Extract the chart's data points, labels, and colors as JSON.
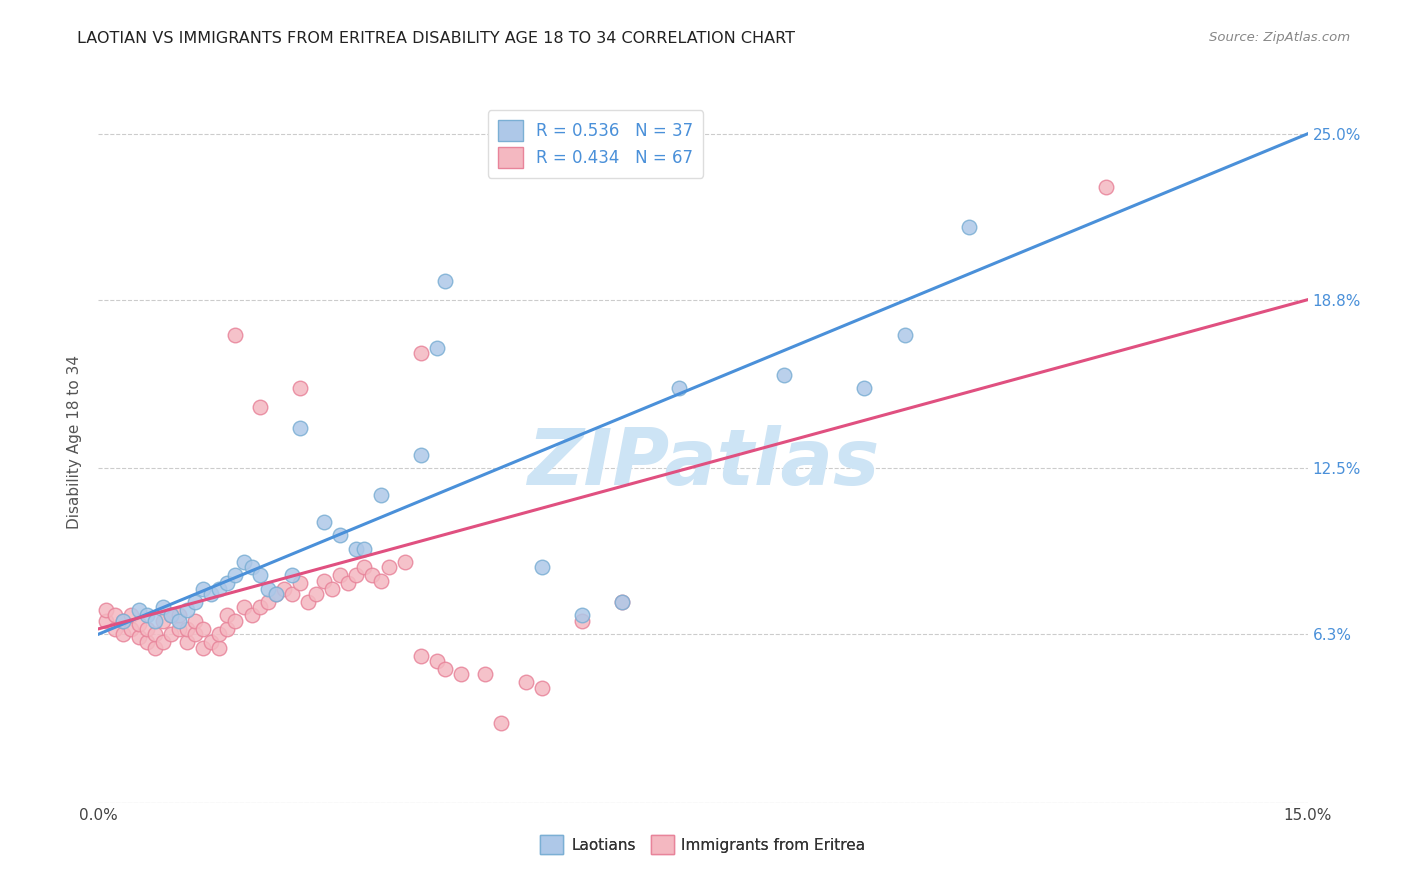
{
  "title": "LAOTIAN VS IMMIGRANTS FROM ERITREA DISABILITY AGE 18 TO 34 CORRELATION CHART",
  "source": "Source: ZipAtlas.com",
  "ylabel": "Disability Age 18 to 34",
  "xlim": [
    0.0,
    0.15
  ],
  "ylim": [
    0.0,
    0.27
  ],
  "ytick_vals": [
    0.0,
    0.063,
    0.125,
    0.188,
    0.25
  ],
  "ytick_labels": [
    "",
    "6.3%",
    "12.5%",
    "18.8%",
    "25.0%"
  ],
  "xtick_vals": [
    0.0,
    0.15
  ],
  "xtick_labels": [
    "0.0%",
    "15.0%"
  ],
  "legend_r_blue": "0.536",
  "legend_n_blue": "37",
  "legend_r_pink": "0.434",
  "legend_n_pink": "67",
  "blue_scatter_color": "#aec8e8",
  "blue_edge_color": "#7bafd4",
  "pink_scatter_color": "#f4b8c1",
  "pink_edge_color": "#e8849a",
  "line_blue_color": "#4a90d9",
  "line_pink_color": "#e05080",
  "watermark": "ZIPatlas",
  "watermark_color": "#cde4f5",
  "blue_line_x0": 0.0,
  "blue_line_y0": 0.063,
  "blue_line_x1": 0.15,
  "blue_line_y1": 0.25,
  "pink_line_x0": 0.0,
  "pink_line_y0": 0.065,
  "pink_line_x1": 0.15,
  "pink_line_y1": 0.188,
  "blue_x": [
    0.003,
    0.005,
    0.006,
    0.007,
    0.008,
    0.009,
    0.01,
    0.011,
    0.012,
    0.013,
    0.014,
    0.015,
    0.016,
    0.017,
    0.018,
    0.019,
    0.02,
    0.021,
    0.022,
    0.024,
    0.025,
    0.028,
    0.03,
    0.032,
    0.033,
    0.035,
    0.04,
    0.042,
    0.043,
    0.055,
    0.06,
    0.065,
    0.072,
    0.085,
    0.095,
    0.1,
    0.108
  ],
  "blue_y": [
    0.068,
    0.072,
    0.07,
    0.068,
    0.073,
    0.07,
    0.068,
    0.072,
    0.075,
    0.08,
    0.078,
    0.08,
    0.082,
    0.085,
    0.09,
    0.088,
    0.085,
    0.08,
    0.078,
    0.085,
    0.14,
    0.105,
    0.1,
    0.095,
    0.095,
    0.115,
    0.13,
    0.17,
    0.195,
    0.088,
    0.07,
    0.075,
    0.155,
    0.16,
    0.155,
    0.175,
    0.215
  ],
  "pink_x": [
    0.001,
    0.001,
    0.002,
    0.002,
    0.003,
    0.003,
    0.004,
    0.004,
    0.005,
    0.005,
    0.006,
    0.006,
    0.007,
    0.007,
    0.008,
    0.008,
    0.009,
    0.009,
    0.01,
    0.01,
    0.011,
    0.011,
    0.012,
    0.012,
    0.013,
    0.013,
    0.014,
    0.015,
    0.015,
    0.016,
    0.016,
    0.017,
    0.018,
    0.019,
    0.02,
    0.021,
    0.022,
    0.023,
    0.024,
    0.025,
    0.026,
    0.027,
    0.028,
    0.029,
    0.03,
    0.031,
    0.032,
    0.033,
    0.034,
    0.035,
    0.036,
    0.038,
    0.04,
    0.042,
    0.043,
    0.045,
    0.048,
    0.05,
    0.053,
    0.055,
    0.06,
    0.065,
    0.04,
    0.025,
    0.02,
    0.017,
    0.125
  ],
  "pink_y": [
    0.068,
    0.072,
    0.065,
    0.07,
    0.063,
    0.068,
    0.065,
    0.07,
    0.062,
    0.067,
    0.06,
    0.065,
    0.058,
    0.063,
    0.06,
    0.068,
    0.063,
    0.07,
    0.065,
    0.07,
    0.06,
    0.065,
    0.063,
    0.068,
    0.058,
    0.065,
    0.06,
    0.058,
    0.063,
    0.065,
    0.07,
    0.068,
    0.073,
    0.07,
    0.073,
    0.075,
    0.078,
    0.08,
    0.078,
    0.082,
    0.075,
    0.078,
    0.083,
    0.08,
    0.085,
    0.082,
    0.085,
    0.088,
    0.085,
    0.083,
    0.088,
    0.09,
    0.055,
    0.053,
    0.05,
    0.048,
    0.048,
    0.03,
    0.045,
    0.043,
    0.068,
    0.075,
    0.168,
    0.155,
    0.148,
    0.175,
    0.23
  ]
}
